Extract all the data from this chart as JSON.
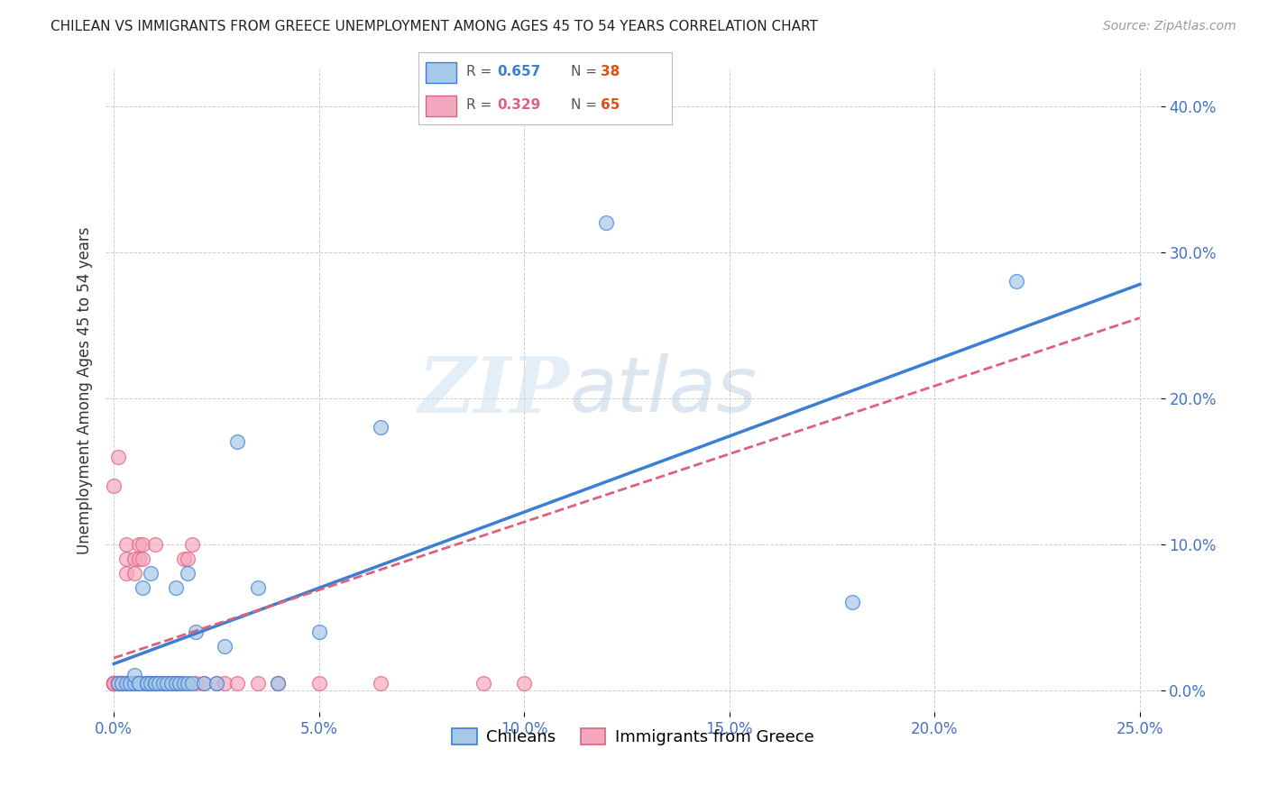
{
  "title": "CHILEAN VS IMMIGRANTS FROM GREECE UNEMPLOYMENT AMONG AGES 45 TO 54 YEARS CORRELATION CHART",
  "source": "Source: ZipAtlas.com",
  "ylabel": "Unemployment Among Ages 45 to 54 years",
  "xlim": [
    -0.002,
    0.255
  ],
  "ylim": [
    -0.015,
    0.425
  ],
  "xticks": [
    0.0,
    0.05,
    0.1,
    0.15,
    0.2,
    0.25
  ],
  "yticks": [
    0.0,
    0.1,
    0.2,
    0.3,
    0.4
  ],
  "legend_labels": [
    "Chileans",
    "Immigrants from Greece"
  ],
  "legend_r_chileans": "0.657",
  "legend_n_chileans": "38",
  "legend_r_greece": "0.329",
  "legend_n_greece": "65",
  "color_chileans": "#a8c8e8",
  "color_greece": "#f4a8c0",
  "color_line_chileans": "#3a7fd5",
  "color_line_greece": "#e0607a",
  "color_ticks": "#4472c4",
  "watermark_zip": "ZIP",
  "watermark_atlas": "atlas",
  "background_color": "#ffffff",
  "chileans_x": [
    0.001,
    0.002,
    0.003,
    0.004,
    0.005,
    0.005,
    0.006,
    0.006,
    0.007,
    0.008,
    0.008,
    0.009,
    0.009,
    0.01,
    0.01,
    0.011,
    0.012,
    0.013,
    0.014,
    0.015,
    0.015,
    0.016,
    0.017,
    0.018,
    0.018,
    0.019,
    0.02,
    0.022,
    0.025,
    0.027,
    0.03,
    0.035,
    0.04,
    0.05,
    0.065,
    0.12,
    0.18,
    0.22
  ],
  "chileans_y": [
    0.005,
    0.005,
    0.005,
    0.005,
    0.005,
    0.01,
    0.005,
    0.005,
    0.07,
    0.005,
    0.005,
    0.005,
    0.08,
    0.005,
    0.005,
    0.005,
    0.005,
    0.005,
    0.005,
    0.07,
    0.005,
    0.005,
    0.005,
    0.08,
    0.005,
    0.005,
    0.04,
    0.005,
    0.005,
    0.03,
    0.17,
    0.07,
    0.005,
    0.04,
    0.18,
    0.32,
    0.06,
    0.28
  ],
  "greece_x": [
    0.0,
    0.0,
    0.0,
    0.0,
    0.0,
    0.0,
    0.0,
    0.0,
    0.0,
    0.0,
    0.001,
    0.001,
    0.001,
    0.001,
    0.001,
    0.002,
    0.002,
    0.002,
    0.002,
    0.003,
    0.003,
    0.003,
    0.003,
    0.003,
    0.004,
    0.004,
    0.005,
    0.005,
    0.005,
    0.005,
    0.006,
    0.006,
    0.006,
    0.007,
    0.007,
    0.007,
    0.008,
    0.008,
    0.009,
    0.009,
    0.01,
    0.01,
    0.01,
    0.011,
    0.012,
    0.013,
    0.013,
    0.014,
    0.015,
    0.015,
    0.016,
    0.017,
    0.018,
    0.019,
    0.02,
    0.022,
    0.025,
    0.027,
    0.03,
    0.035,
    0.04,
    0.05,
    0.065,
    0.09,
    0.1
  ],
  "greece_y": [
    0.005,
    0.005,
    0.005,
    0.005,
    0.005,
    0.005,
    0.005,
    0.005,
    0.005,
    0.14,
    0.005,
    0.005,
    0.005,
    0.005,
    0.16,
    0.005,
    0.005,
    0.005,
    0.005,
    0.005,
    0.005,
    0.08,
    0.09,
    0.1,
    0.005,
    0.005,
    0.005,
    0.005,
    0.08,
    0.09,
    0.005,
    0.09,
    0.1,
    0.005,
    0.09,
    0.1,
    0.005,
    0.005,
    0.005,
    0.005,
    0.005,
    0.005,
    0.1,
    0.005,
    0.005,
    0.005,
    0.005,
    0.005,
    0.005,
    0.005,
    0.005,
    0.09,
    0.09,
    0.1,
    0.005,
    0.005,
    0.005,
    0.005,
    0.005,
    0.005,
    0.005,
    0.005,
    0.005,
    0.005,
    0.005
  ],
  "line_chileans_x0": 0.0,
  "line_chileans_y0": 0.018,
  "line_chileans_x1": 0.25,
  "line_chileans_y1": 0.278,
  "line_greece_x0": 0.0,
  "line_greece_y0": 0.022,
  "line_greece_x1": 0.25,
  "line_greece_y1": 0.255
}
